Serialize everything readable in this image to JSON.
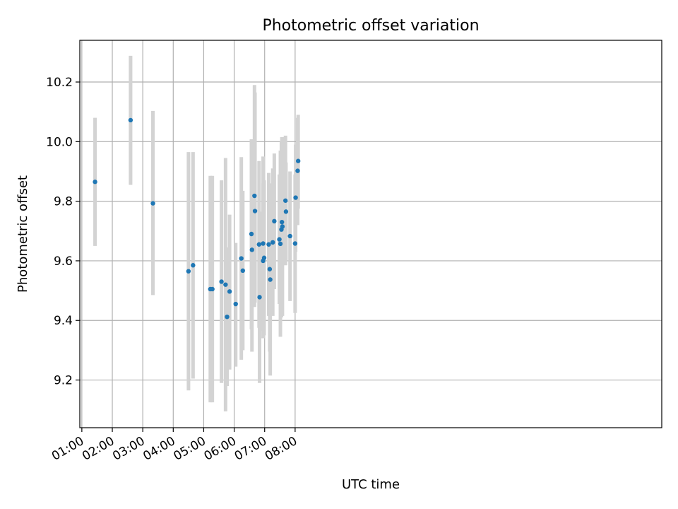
{
  "chart_data": {
    "type": "scatter",
    "title": "Photometric offset variation",
    "xlabel": "UTC time",
    "ylabel": "Photometric offset",
    "x_tick_labels": [
      "01:00",
      "02:00",
      "03:00",
      "04:00",
      "05:00",
      "06:00",
      "07:00",
      "08:00"
    ],
    "y_tick_labels": [
      "9.2",
      "9.4",
      "9.6",
      "9.8",
      "10.0",
      "10.2"
    ],
    "y_ticks": [
      9.2,
      9.4,
      9.6,
      9.8,
      10.0,
      10.2
    ],
    "xlim_minutes": [
      56,
      1202
    ],
    "ylim": [
      9.04,
      10.34
    ],
    "grid": true,
    "marker_color": "#1f77b4",
    "errorbar_color": "#d3d3d3",
    "series": [
      {
        "points": [
          {
            "x": "01:26",
            "y": 9.865,
            "lo": 9.65,
            "hi": 10.08
          },
          {
            "x": "02:36",
            "y": 10.072,
            "lo": 9.855,
            "hi": 10.288
          },
          {
            "x": "03:20",
            "y": 9.793,
            "lo": 9.485,
            "hi": 10.103
          },
          {
            "x": "04:30",
            "y": 9.565,
            "lo": 9.165,
            "hi": 9.965
          },
          {
            "x": "04:39",
            "y": 9.585,
            "lo": 9.205,
            "hi": 9.965
          },
          {
            "x": "05:13",
            "y": 9.505,
            "lo": 9.125,
            "hi": 9.885
          },
          {
            "x": "05:17",
            "y": 9.505,
            "lo": 9.125,
            "hi": 9.885
          },
          {
            "x": "05:35",
            "y": 9.53,
            "lo": 9.19,
            "hi": 9.87
          },
          {
            "x": "05:43",
            "y": 9.52,
            "lo": 9.095,
            "hi": 9.945
          },
          {
            "x": "05:46",
            "y": 9.412,
            "lo": 9.18,
            "hi": 9.645
          },
          {
            "x": "05:51",
            "y": 9.497,
            "lo": 9.235,
            "hi": 9.755
          },
          {
            "x": "06:03",
            "y": 9.455,
            "lo": 9.245,
            "hi": 9.66
          },
          {
            "x": "06:14",
            "y": 9.608,
            "lo": 9.268,
            "hi": 9.948
          },
          {
            "x": "06:17",
            "y": 9.567,
            "lo": 9.3,
            "hi": 9.835
          },
          {
            "x": "06:34",
            "y": 9.69,
            "lo": 9.37,
            "hi": 10.008
          },
          {
            "x": "06:35",
            "y": 9.637,
            "lo": 9.295,
            "hi": 9.98
          },
          {
            "x": "06:40",
            "y": 9.818,
            "lo": 9.445,
            "hi": 10.19
          },
          {
            "x": "06:41",
            "y": 9.767,
            "lo": 9.46,
            "hi": 10.165
          },
          {
            "x": "06:49",
            "y": 9.655,
            "lo": 9.375,
            "hi": 9.935
          },
          {
            "x": "06:50",
            "y": 9.478,
            "lo": 9.19,
            "hi": 9.765
          },
          {
            "x": "06:57",
            "y": 9.658,
            "lo": 9.365,
            "hi": 9.95
          },
          {
            "x": "06:57",
            "y": 9.6,
            "lo": 9.34,
            "hi": 9.86
          },
          {
            "x": "06:59",
            "y": 9.61,
            "lo": 9.35,
            "hi": 9.87
          },
          {
            "x": "07:08",
            "y": 9.655,
            "lo": 9.415,
            "hi": 9.895
          },
          {
            "x": "07:10",
            "y": 9.572,
            "lo": 9.295,
            "hi": 9.855
          },
          {
            "x": "07:11",
            "y": 9.537,
            "lo": 9.215,
            "hi": 9.86
          },
          {
            "x": "07:16",
            "y": 9.662,
            "lo": 9.415,
            "hi": 9.91
          },
          {
            "x": "07:19",
            "y": 9.733,
            "lo": 9.505,
            "hi": 9.96
          },
          {
            "x": "07:29",
            "y": 9.672,
            "lo": 9.455,
            "hi": 9.89
          },
          {
            "x": "07:31",
            "y": 9.657,
            "lo": 9.345,
            "hi": 9.97
          },
          {
            "x": "07:33",
            "y": 9.705,
            "lo": 9.41,
            "hi": 10.0
          },
          {
            "x": "07:34",
            "y": 9.73,
            "lo": 9.445,
            "hi": 10.015
          },
          {
            "x": "07:35",
            "y": 9.715,
            "lo": 9.415,
            "hi": 10.015
          },
          {
            "x": "07:41",
            "y": 9.802,
            "lo": 9.585,
            "hi": 10.02
          },
          {
            "x": "07:42",
            "y": 9.765,
            "lo": 9.6,
            "hi": 9.93
          },
          {
            "x": "07:50",
            "y": 9.683,
            "lo": 9.465,
            "hi": 9.9
          },
          {
            "x": "08:00",
            "y": 9.658,
            "lo": 9.425,
            "hi": 9.89
          },
          {
            "x": "08:01",
            "y": 9.812,
            "lo": 9.63,
            "hi": 9.99
          },
          {
            "x": "08:05",
            "y": 9.902,
            "lo": 9.72,
            "hi": 10.08
          },
          {
            "x": "08:06",
            "y": 9.935,
            "lo": 9.775,
            "hi": 10.09
          }
        ]
      }
    ]
  }
}
